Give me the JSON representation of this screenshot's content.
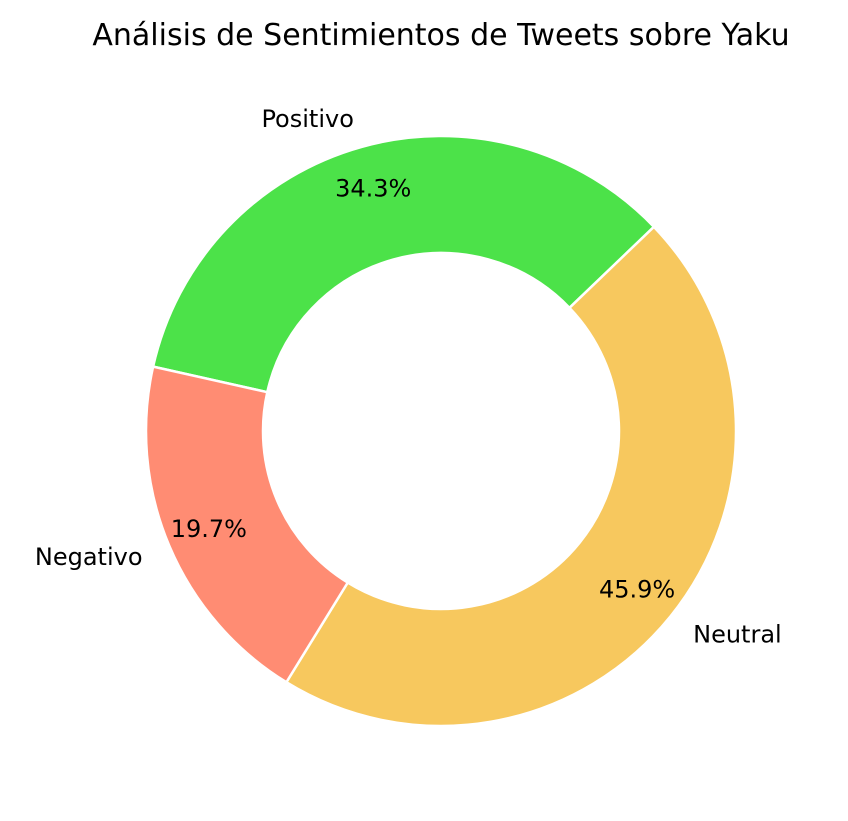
{
  "chart_data": {
    "type": "pie",
    "donut": true,
    "title": "Análisis de Sentimientos de Tweets sobre Yaku",
    "categories": [
      "Positivo",
      "Neutral",
      "Negativo"
    ],
    "values": [
      34.3,
      45.9,
      19.7
    ],
    "percent_labels": [
      "34.3%",
      "45.9%",
      "19.7%"
    ],
    "colors": [
      "#4ce249",
      "#f7c85e",
      "#ff8c73"
    ],
    "slice_edge_color": "#ffffff",
    "start_angle_deg": 167.4,
    "direction": "counterclockwise",
    "legend": "none"
  }
}
